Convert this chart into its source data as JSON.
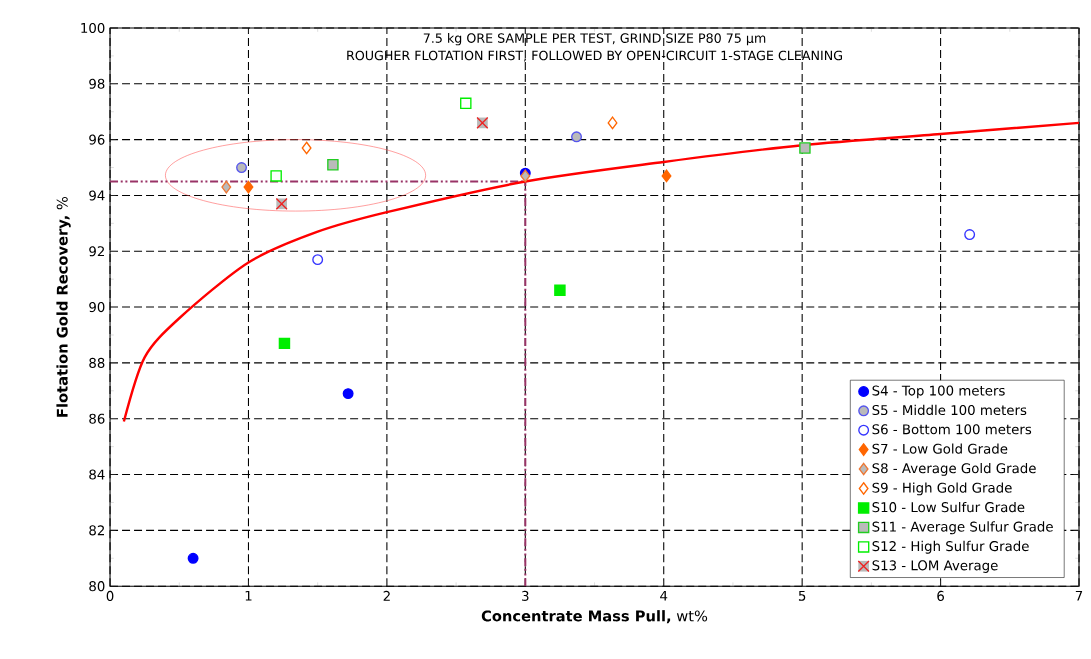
{
  "chart_data": {
    "type": "scatter",
    "title": "7.5 kg ORE SAMPLE PER TEST, GRIND SIZE P80 75 µm",
    "subtitle": "ROUGHER FLOTATION FIRST, FOLLOWED BY OPEN-CIRCUIT 1-STAGE CLEANING",
    "xlabel": "**Concentrate Mass Pull,** wt%",
    "ylabel": "**Flotation Gold Recovery,** %",
    "xlim": [
      0,
      7
    ],
    "xticks": [
      0,
      1,
      2,
      3,
      4,
      5,
      6,
      7
    ],
    "ylim": [
      80,
      100
    ],
    "yticks": [
      80,
      82,
      84,
      86,
      88,
      90,
      92,
      94,
      96,
      98,
      100
    ],
    "grid": true,
    "legend": "bottom right",
    "ref_lines": [
      {
        "axis": "y",
        "value": 94.5,
        "color": "#993366"
      },
      {
        "axis": "x",
        "value": 3,
        "color": "#993366"
      }
    ],
    "series": [
      {
        "name": "S4 - Top 100 meters",
        "color": "#0000ff",
        "marker": "circle",
        "x": [
          0.6,
          1.72,
          3.0
        ],
        "values": [
          81.0,
          86.9,
          94.8
        ]
      },
      {
        "name": "S5 - Middle 100 meters",
        "color": "#5555ee",
        "marker": "circle",
        "x": [
          0.95,
          3.37
        ],
        "values": [
          95.0,
          96.1
        ]
      },
      {
        "name": "S6 - Bottom 100 meters",
        "color": "#3333ff",
        "marker": "circle",
        "x": [
          1.5,
          6.21
        ],
        "values": [
          91.7,
          92.6
        ]
      },
      {
        "name": "S7 - Low Gold Grade",
        "color": "#ff6600",
        "marker": "diamond",
        "x": [
          1.0,
          4.02
        ],
        "values": [
          94.3,
          94.7
        ]
      },
      {
        "name": "S8 - Average Gold Grade",
        "color": "#ee7733",
        "marker": "diamond",
        "x": [
          0.84,
          3.0
        ],
        "values": [
          94.3,
          94.7
        ]
      },
      {
        "name": "S9 - High Gold Grade",
        "color": "#ff6600",
        "marker": "diamond",
        "x": [
          1.42,
          3.63
        ],
        "values": [
          95.7,
          96.6
        ]
      },
      {
        "name": "S10 - Low Sulfur Grade",
        "color": "#00ee00",
        "marker": "square",
        "x": [
          1.26,
          3.25
        ],
        "values": [
          88.7,
          90.6
        ]
      },
      {
        "name": "S11 - Average Sulfur Grade",
        "color": "#22cc22",
        "marker": "square",
        "x": [
          1.61,
          5.02
        ],
        "values": [
          95.1,
          95.7
        ]
      },
      {
        "name": "S12 - High Sulfur Grade",
        "color": "#00ee00",
        "marker": "square",
        "x": [
          1.2,
          2.57
        ],
        "values": [
          94.7,
          97.3
        ]
      },
      {
        "name": "S13 - LOM Average",
        "color": "#ee2222",
        "marker": "cross",
        "x": [
          1.24,
          2.69
        ],
        "values": [
          93.7,
          96.6
        ]
      },
      {
        "type": "line",
        "color": "#ff0000",
        "x": [
          0.1,
          0.25,
          0.5,
          1,
          1.5,
          2,
          3,
          4,
          5,
          6,
          7
        ],
        "values": [
          85.9,
          88.2,
          89.6,
          91.6,
          92.7,
          93.4,
          94.5,
          95.2,
          95.8,
          96.2,
          96.6
        ]
      }
    ]
  }
}
